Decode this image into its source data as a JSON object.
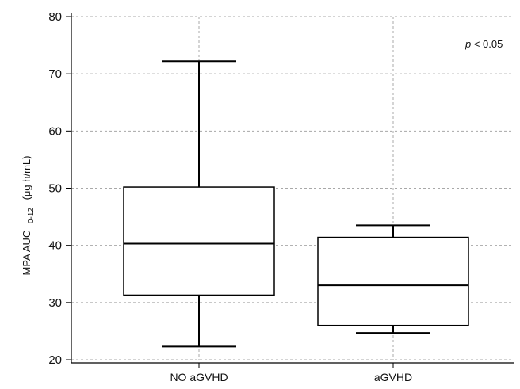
{
  "chart_data": {
    "type": "box",
    "categories": [
      "NO aGVHD",
      "aGVHD"
    ],
    "boxes": [
      {
        "category": "NO aGVHD",
        "whisker_low": 22.3,
        "q1": 31.3,
        "median": 40.3,
        "q3": 50.2,
        "whisker_high": 72.2
      },
      {
        "category": "aGVHD",
        "whisker_low": 24.7,
        "q1": 26.0,
        "median": 33.0,
        "q3": 41.4,
        "whisker_high": 43.5
      }
    ],
    "ylim": [
      20,
      80
    ],
    "yticks": [
      "20",
      "30",
      "40",
      "50",
      "60",
      "70",
      "80"
    ],
    "ylabel": {
      "main": "MPA AUC",
      "sub": "0-12",
      "unit": "(μg h/mL)"
    },
    "annotation": {
      "italic": "p",
      "rest": " < 0.05"
    },
    "grid": true,
    "colors": {
      "stroke": "#000000",
      "grid": "#a8a8a8",
      "box_fill": "#ffffff"
    }
  }
}
